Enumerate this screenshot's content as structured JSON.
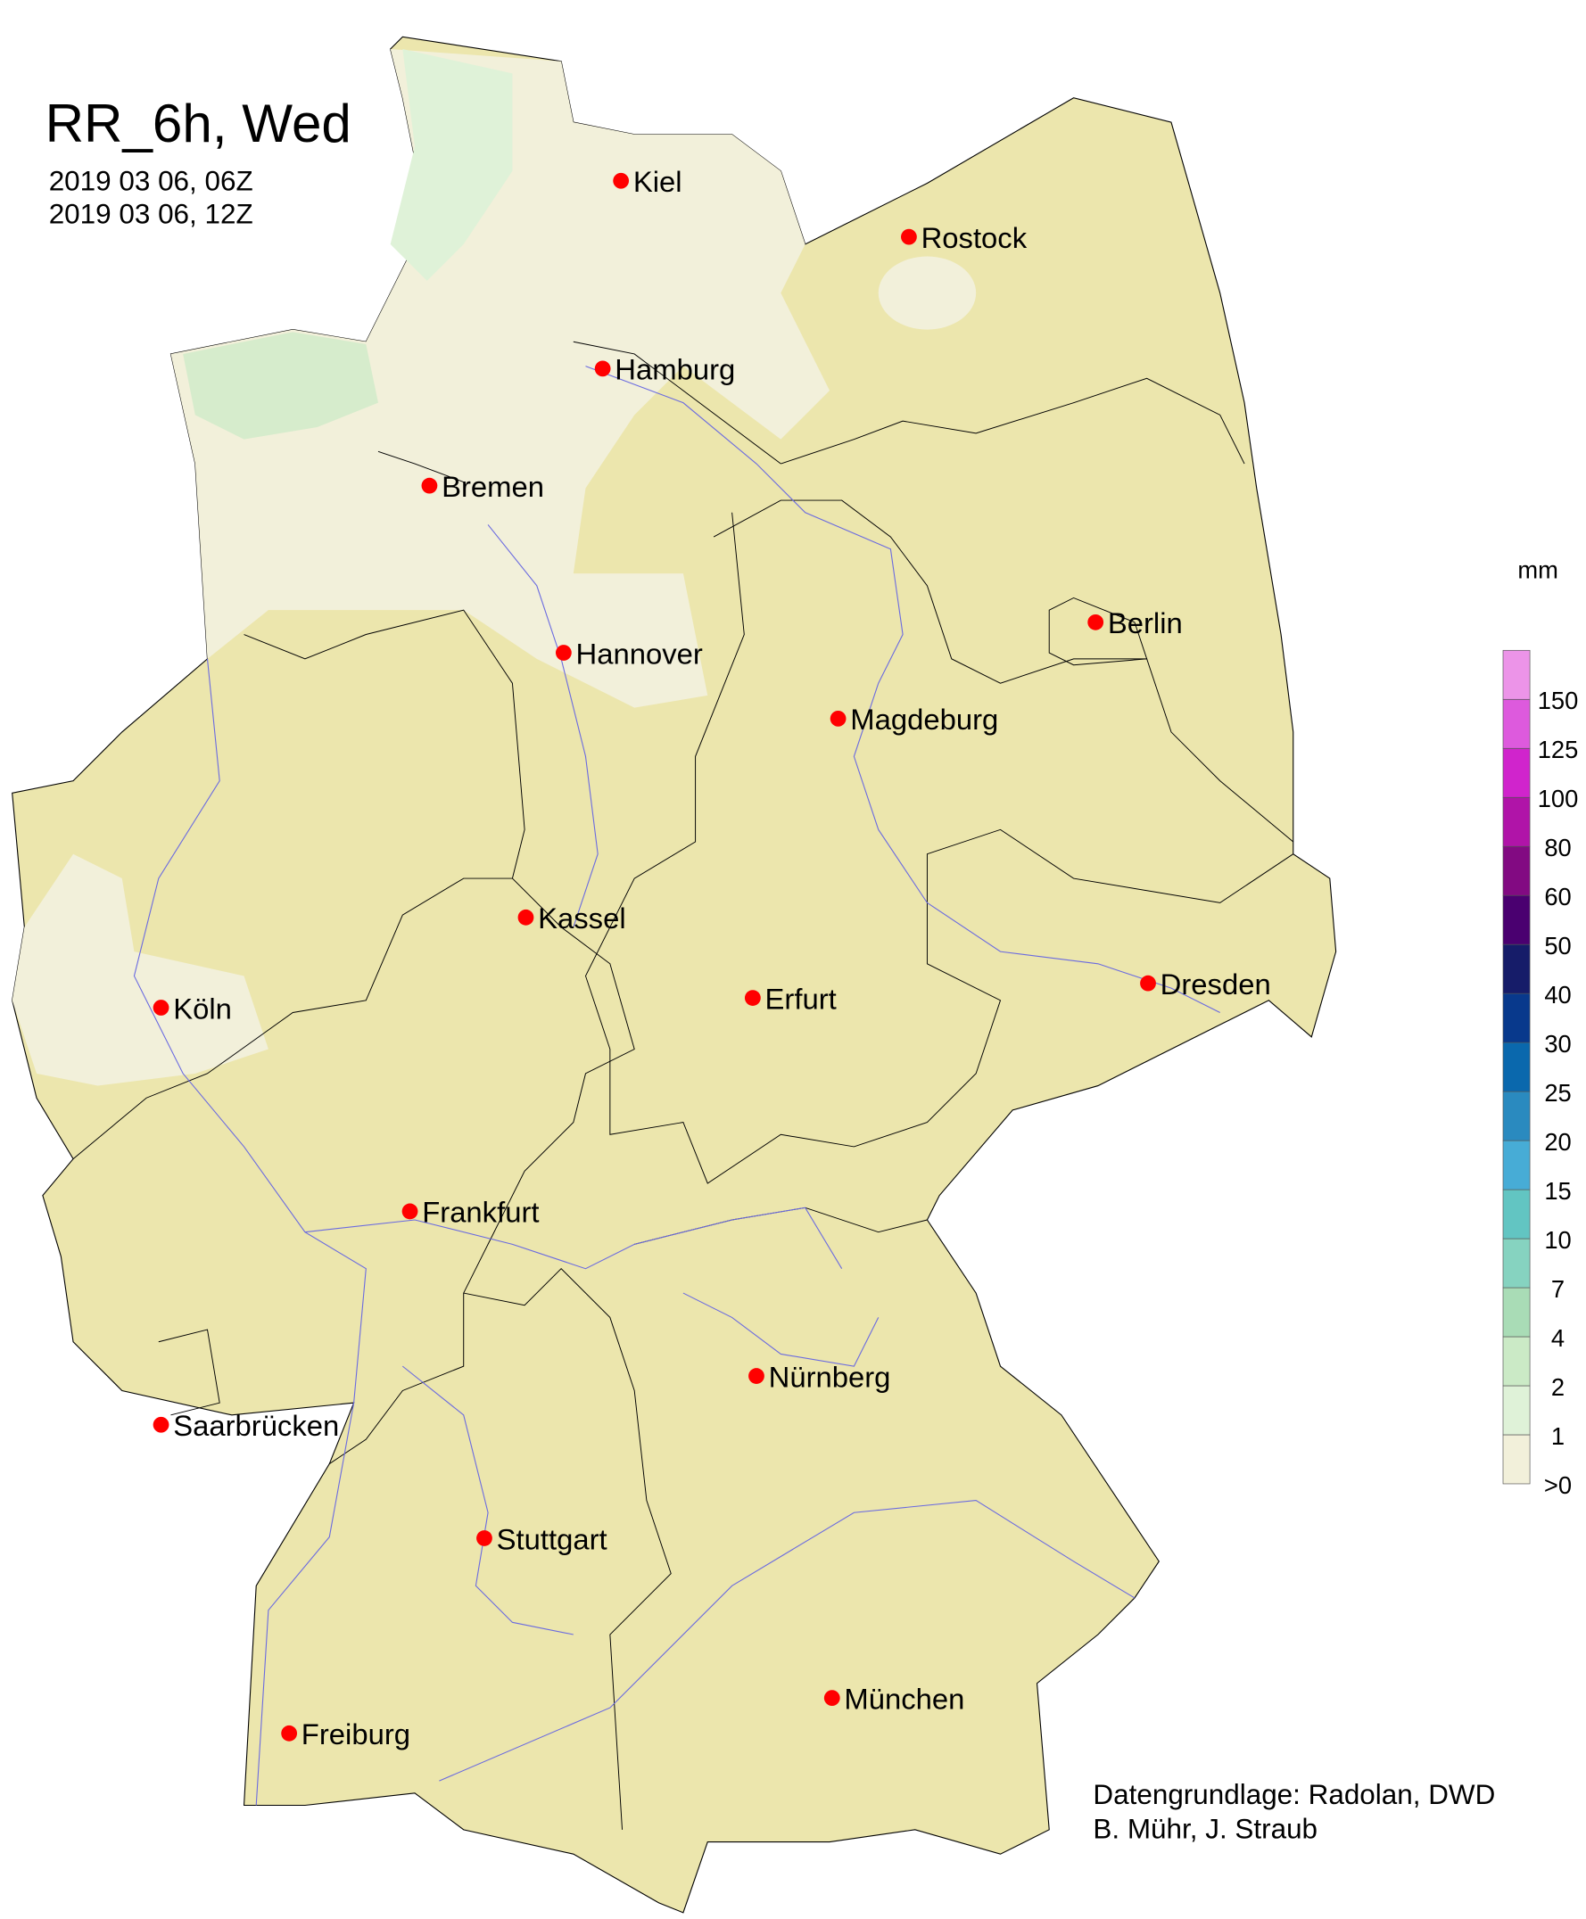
{
  "title": "RR_6h, Wed",
  "period_start": "2019 03 06, 06Z",
  "period_end": "2019 03 06, 12Z",
  "credit_line1": "Datengrundlage: Radolan, DWD",
  "credit_line2": "B. Mühr, J. Straub",
  "legend": {
    "unit": "mm",
    "labels": [
      ">0",
      "1",
      "2",
      "4",
      "7",
      "10",
      "15",
      "20",
      "25",
      "30",
      "40",
      "50",
      "60",
      "80",
      "100",
      "125",
      "150"
    ],
    "colors": [
      "#f2f0da",
      "#dff2d8",
      "#cbeac6",
      "#a9dcb6",
      "#86d3c0",
      "#62c5c2",
      "#47acd6",
      "#2a8abf",
      "#0a68ad",
      "#08398c",
      "#161c69",
      "#4a0070",
      "#820a82",
      "#b014a8",
      "#d024cc",
      "#dd5add",
      "#ec94e8"
    ]
  },
  "map_colors": {
    "land": "#ece6ad",
    "light_rain": "#f2f0da",
    "rain_1mm": "#dff2d8",
    "rain_2mm": "#cbeac6",
    "rivers": "#6a6ae0",
    "city_marker": "#ff0000"
  },
  "cities": [
    "Kiel",
    "Rostock",
    "Hamburg",
    "Bremen",
    "Berlin",
    "Hannover",
    "Magdeburg",
    "Kassel",
    "Köln",
    "Erfurt",
    "Dresden",
    "Frankfurt",
    "Nürnberg",
    "Saarbrücken",
    "Stuttgart",
    "München",
    "Freiburg"
  ]
}
